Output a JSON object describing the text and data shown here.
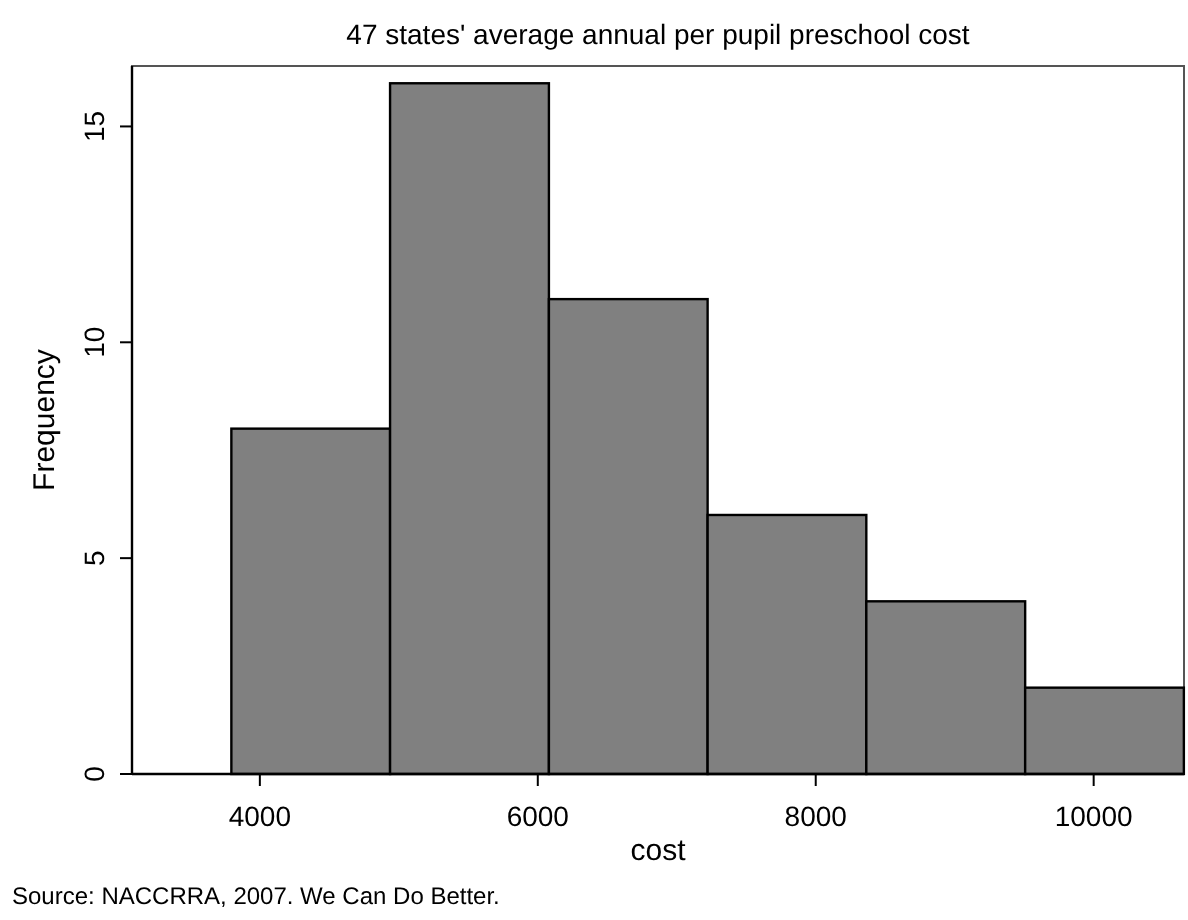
{
  "chart_data": {
    "type": "histogram",
    "title": "47 states' average annual per pupil preschool cost",
    "xlabel": "cost",
    "ylabel": "Frequency",
    "bins": [
      3795,
      4937,
      6080,
      7222,
      8364,
      9507,
      10649
    ],
    "values": [
      8,
      16,
      11,
      6,
      4,
      2
    ],
    "color": "#808080",
    "xlim": [
      3080,
      10650
    ],
    "xticks": [
      4000,
      6000,
      8000,
      10000
    ],
    "ylim": [
      0,
      16.4
    ],
    "yticks": [
      0,
      5,
      10,
      15
    ],
    "grid": false,
    "annotations": [
      "Source: NACCRRA, 2007. We Can Do Better."
    ]
  }
}
